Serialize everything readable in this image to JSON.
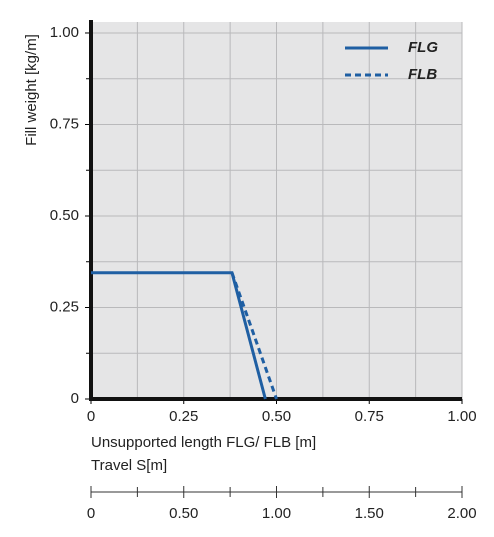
{
  "chart_data": {
    "type": "line",
    "y_label": "Fill weight [kg/m]",
    "x_label": "Unsupported length FLG/ FLB [m]",
    "x2_label": "Travel S[m]",
    "series": [
      {
        "name": "FLG",
        "color": "#1f5fa3",
        "dash": "solid",
        "x": [
          0,
          0.38,
          0.47
        ],
        "values": [
          0.345,
          0.345,
          0
        ]
      },
      {
        "name": "FLB",
        "color": "#1f5fa3",
        "dash": "dashed",
        "x": [
          0.38,
          0.5
        ],
        "values": [
          0.345,
          0
        ]
      }
    ],
    "xlim": [
      0,
      1
    ],
    "ylim": [
      0,
      1.03
    ],
    "xticks": [
      0,
      0.25,
      {
        "value": 0.5,
        "label": "0.50"
      },
      0.75,
      {
        "value": 1,
        "label": "1.00"
      }
    ],
    "yticks": [
      0,
      0.25,
      {
        "value": 0.5,
        "label": "0.50"
      },
      0.75,
      {
        "value": 1,
        "label": "1.00"
      }
    ],
    "x2lim": [
      0,
      2
    ],
    "x2ticks": [
      0,
      {
        "value": 0.5,
        "label": "0.50"
      },
      {
        "value": 1,
        "label": "1.00"
      },
      {
        "value": 1.5,
        "label": "1.50"
      },
      {
        "value": 2,
        "label": "2.00"
      }
    ],
    "grid": true,
    "legend": "upper right"
  }
}
